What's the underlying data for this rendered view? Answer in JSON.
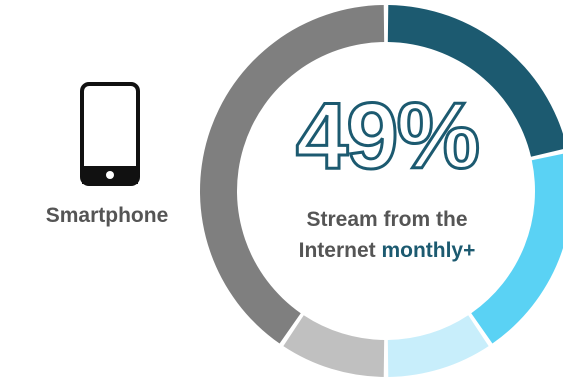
{
  "chart_data": {
    "type": "pie",
    "variant": "donut",
    "series": [
      {
        "segments": [
          {
            "value": 21.5,
            "color": "#1c5a70"
          },
          {
            "value": 19.0,
            "color": "#5ad2f4"
          },
          {
            "value": 9.5,
            "color": "#c8eefb"
          },
          {
            "value": 9.5,
            "color": "#c0c0c0"
          },
          {
            "value": 40.5,
            "color": "#7f7f7f"
          }
        ]
      }
    ],
    "headline_value": "49%",
    "caption": {
      "line1": "Stream from the",
      "line2_prefix": "Internet ",
      "line2_accent": "monthly+"
    },
    "device_label": "Smartphone",
    "accent_color": "#1c5a70"
  },
  "icons": {
    "device": "smartphone-icon"
  }
}
